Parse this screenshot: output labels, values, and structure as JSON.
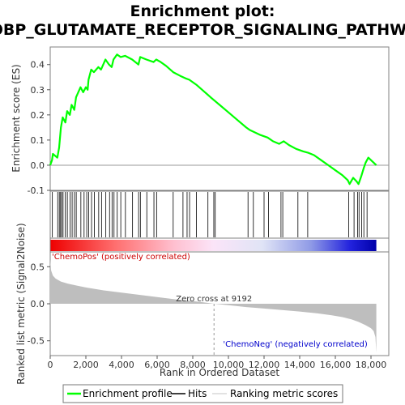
{
  "chart_data": {
    "type": "line",
    "title_line1": "Enrichment plot:",
    "title_line2": "GOBP_GLUTAMATE_RECEPTOR_SIGNALING_PATHWAY",
    "xlabel": "Rank in Ordered Dataset",
    "es_ylabel": "Enrichment score (ES)",
    "metric_ylabel": "Ranked list metric (Signal2Noise)",
    "xlim": [
      0,
      19000
    ],
    "es_ylim": [
      -0.1,
      0.47
    ],
    "metric_ylim": [
      -0.7,
      0.7
    ],
    "x_ticks": [
      0,
      2000,
      4000,
      6000,
      8000,
      10000,
      12000,
      14000,
      16000,
      18000
    ],
    "x_tick_labels": [
      "0",
      "2,000",
      "4,000",
      "6,000",
      "8,000",
      "10,000",
      "12,000",
      "14,000",
      "16,000",
      "18,000"
    ],
    "es_ticks": [
      -0.1,
      0.0,
      0.1,
      0.2,
      0.3,
      0.4
    ],
    "es_tick_labels": [
      "-0.1",
      "0.0",
      "0.1",
      "0.2",
      "0.3",
      "0.4"
    ],
    "metric_ticks": [
      -0.5,
      0.0,
      0.5
    ],
    "metric_tick_labels": [
      "-0.5",
      "0.0",
      "0.5"
    ],
    "n_genes": 18300,
    "zero_cross_rank": 9192,
    "zero_cross_label": "Zero cross at 9192",
    "pos_label": "'ChemoPos' (positively correlated)",
    "neg_label": "'ChemoNeg' (negatively correlated)",
    "es_curve": {
      "name": "Enrichment profile",
      "color": "#00ff00",
      "x": [
        0,
        100,
        150,
        400,
        500,
        550,
        600,
        700,
        850,
        950,
        1100,
        1200,
        1350,
        1450,
        1700,
        1850,
        2000,
        2100,
        2150,
        2300,
        2450,
        2700,
        2850,
        3100,
        3300,
        3450,
        3550,
        3750,
        3950,
        4200,
        4600,
        4950,
        5050,
        5400,
        5800,
        5950,
        6200,
        6500,
        6900,
        7300,
        7600,
        7800,
        8200,
        8600,
        9000,
        9500,
        10000,
        10500,
        11000,
        11200,
        11500,
        11800,
        12200,
        12500,
        12850,
        13100,
        13400,
        13800,
        14200,
        14450,
        14800,
        15200,
        15600,
        16000,
        16400,
        16700,
        16800,
        17000,
        17200,
        17300,
        17450,
        17600,
        17700,
        17850,
        18000,
        18300
      ],
      "y": [
        0.0,
        0.02,
        0.045,
        0.03,
        0.07,
        0.11,
        0.15,
        0.19,
        0.17,
        0.215,
        0.2,
        0.24,
        0.22,
        0.27,
        0.31,
        0.29,
        0.31,
        0.3,
        0.34,
        0.38,
        0.37,
        0.39,
        0.38,
        0.42,
        0.4,
        0.39,
        0.42,
        0.44,
        0.43,
        0.435,
        0.42,
        0.4,
        0.43,
        0.42,
        0.41,
        0.42,
        0.41,
        0.395,
        0.37,
        0.355,
        0.345,
        0.34,
        0.32,
        0.295,
        0.27,
        0.24,
        0.21,
        0.18,
        0.15,
        0.14,
        0.13,
        0.12,
        0.11,
        0.095,
        0.085,
        0.095,
        0.08,
        0.065,
        0.055,
        0.05,
        0.04,
        0.02,
        0.0,
        -0.02,
        -0.04,
        -0.06,
        -0.075,
        -0.05,
        -0.065,
        -0.075,
        -0.045,
        -0.01,
        0.01,
        0.03,
        0.02,
        0.0
      ]
    },
    "hits": [
      120,
      420,
      510,
      580,
      640,
      720,
      850,
      960,
      1120,
      1230,
      1360,
      1460,
      1720,
      1900,
      2050,
      2160,
      2320,
      2480,
      2720,
      2880,
      3120,
      3330,
      3470,
      3580,
      3760,
      3960,
      4220,
      4620,
      4960,
      5060,
      5420,
      5820,
      5970,
      6900,
      7450,
      7680,
      7820,
      8200,
      8850,
      9180,
      9260,
      11100,
      11400,
      12000,
      12250,
      12950,
      13050,
      13900,
      14450,
      16750,
      17050,
      17250,
      17330,
      17480,
      17600,
      17780
    ],
    "hits_color": "#000000",
    "metric_color": "#bebebe",
    "metric_profile": {
      "name": "Ranking metric scores",
      "x": [
        0,
        50,
        150,
        300,
        600,
        1000,
        1500,
        2000,
        3000,
        4000,
        5000,
        6000,
        7000,
        8000,
        8600,
        9192,
        10000,
        11000,
        12000,
        13000,
        14000,
        15000,
        15800,
        16400,
        16900,
        17300,
        17700,
        18000,
        18150,
        18250,
        18300
      ],
      "y": [
        0.6,
        0.45,
        0.38,
        0.34,
        0.3,
        0.27,
        0.245,
        0.22,
        0.18,
        0.15,
        0.12,
        0.09,
        0.06,
        0.035,
        0.02,
        0.0,
        -0.02,
        -0.045,
        -0.065,
        -0.085,
        -0.105,
        -0.13,
        -0.155,
        -0.18,
        -0.21,
        -0.245,
        -0.29,
        -0.33,
        -0.37,
        -0.45,
        -0.66
      ]
    },
    "legend": [
      {
        "label": "Enrichment profile",
        "color": "#00ff00"
      },
      {
        "label": "Hits",
        "color": "#000000"
      },
      {
        "label": "Ranking metric scores",
        "color": "#bebebe"
      }
    ],
    "legend_position": "bottom"
  }
}
